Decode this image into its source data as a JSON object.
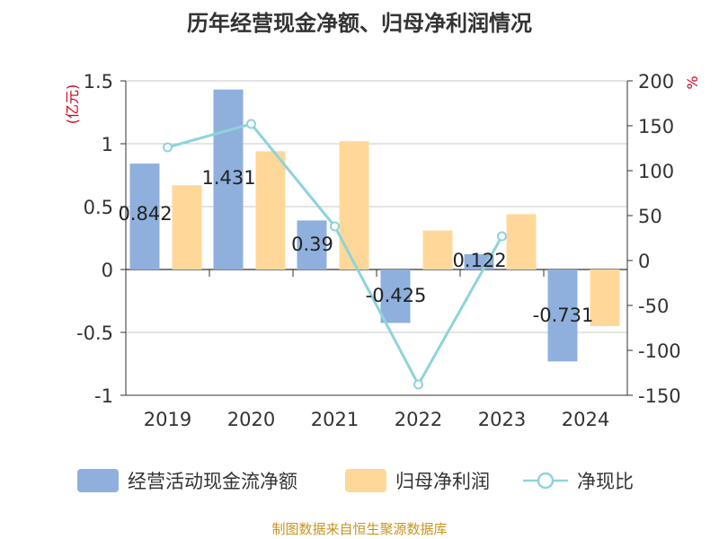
{
  "chart_data": {
    "type": "bar",
    "title": "历年经营现金净额、归母净利润情况",
    "categories": [
      "2019",
      "2020",
      "2021",
      "2022",
      "2023",
      "2024"
    ],
    "series": [
      {
        "name": "经营活动现金流净额",
        "axis": "left",
        "kind": "bar",
        "color": "#8fb0dd",
        "values": [
          0.842,
          1.431,
          0.39,
          -0.425,
          0.122,
          -0.731
        ],
        "labels": [
          "0.842",
          "1.431",
          "0.39",
          "-0.425",
          "0.122",
          "-0.731"
        ]
      },
      {
        "name": "归母净利润",
        "axis": "left",
        "kind": "bar",
        "color": "#ffd899",
        "values": [
          0.67,
          0.94,
          1.02,
          0.31,
          0.44,
          -0.45
        ]
      },
      {
        "name": "净现比",
        "axis": "right",
        "kind": "line",
        "color": "#8fd3da",
        "values": [
          126,
          152,
          38,
          -138,
          27,
          null
        ]
      }
    ],
    "y_left": {
      "label": "(亿元)",
      "min": -1,
      "max": 1.5,
      "ticks": [
        1.5,
        1,
        0.5,
        0,
        -0.5,
        -1
      ],
      "tick_labels": [
        "1.5",
        "1",
        "0.5",
        "0",
        "-0.5",
        "-1"
      ]
    },
    "y_right": {
      "label": "%",
      "min": -150,
      "max": 200,
      "ticks": [
        200,
        150,
        100,
        50,
        0,
        -50,
        -100,
        -150
      ],
      "tick_labels": [
        "200",
        "150",
        "100",
        "50",
        "0",
        "-50",
        "-100",
        "-150"
      ]
    },
    "grid": true,
    "legend_position": "bottom"
  },
  "legend": {
    "cash_flow": "经营活动现金流净额",
    "net_profit": "归母净利润",
    "ratio": "净现比"
  },
  "source": "制图数据来自恒生聚源数据库",
  "colors": {
    "bar1": "#8fb0dd",
    "bar2": "#ffd899",
    "line": "#8fd3da",
    "unit": "#d0021b"
  }
}
